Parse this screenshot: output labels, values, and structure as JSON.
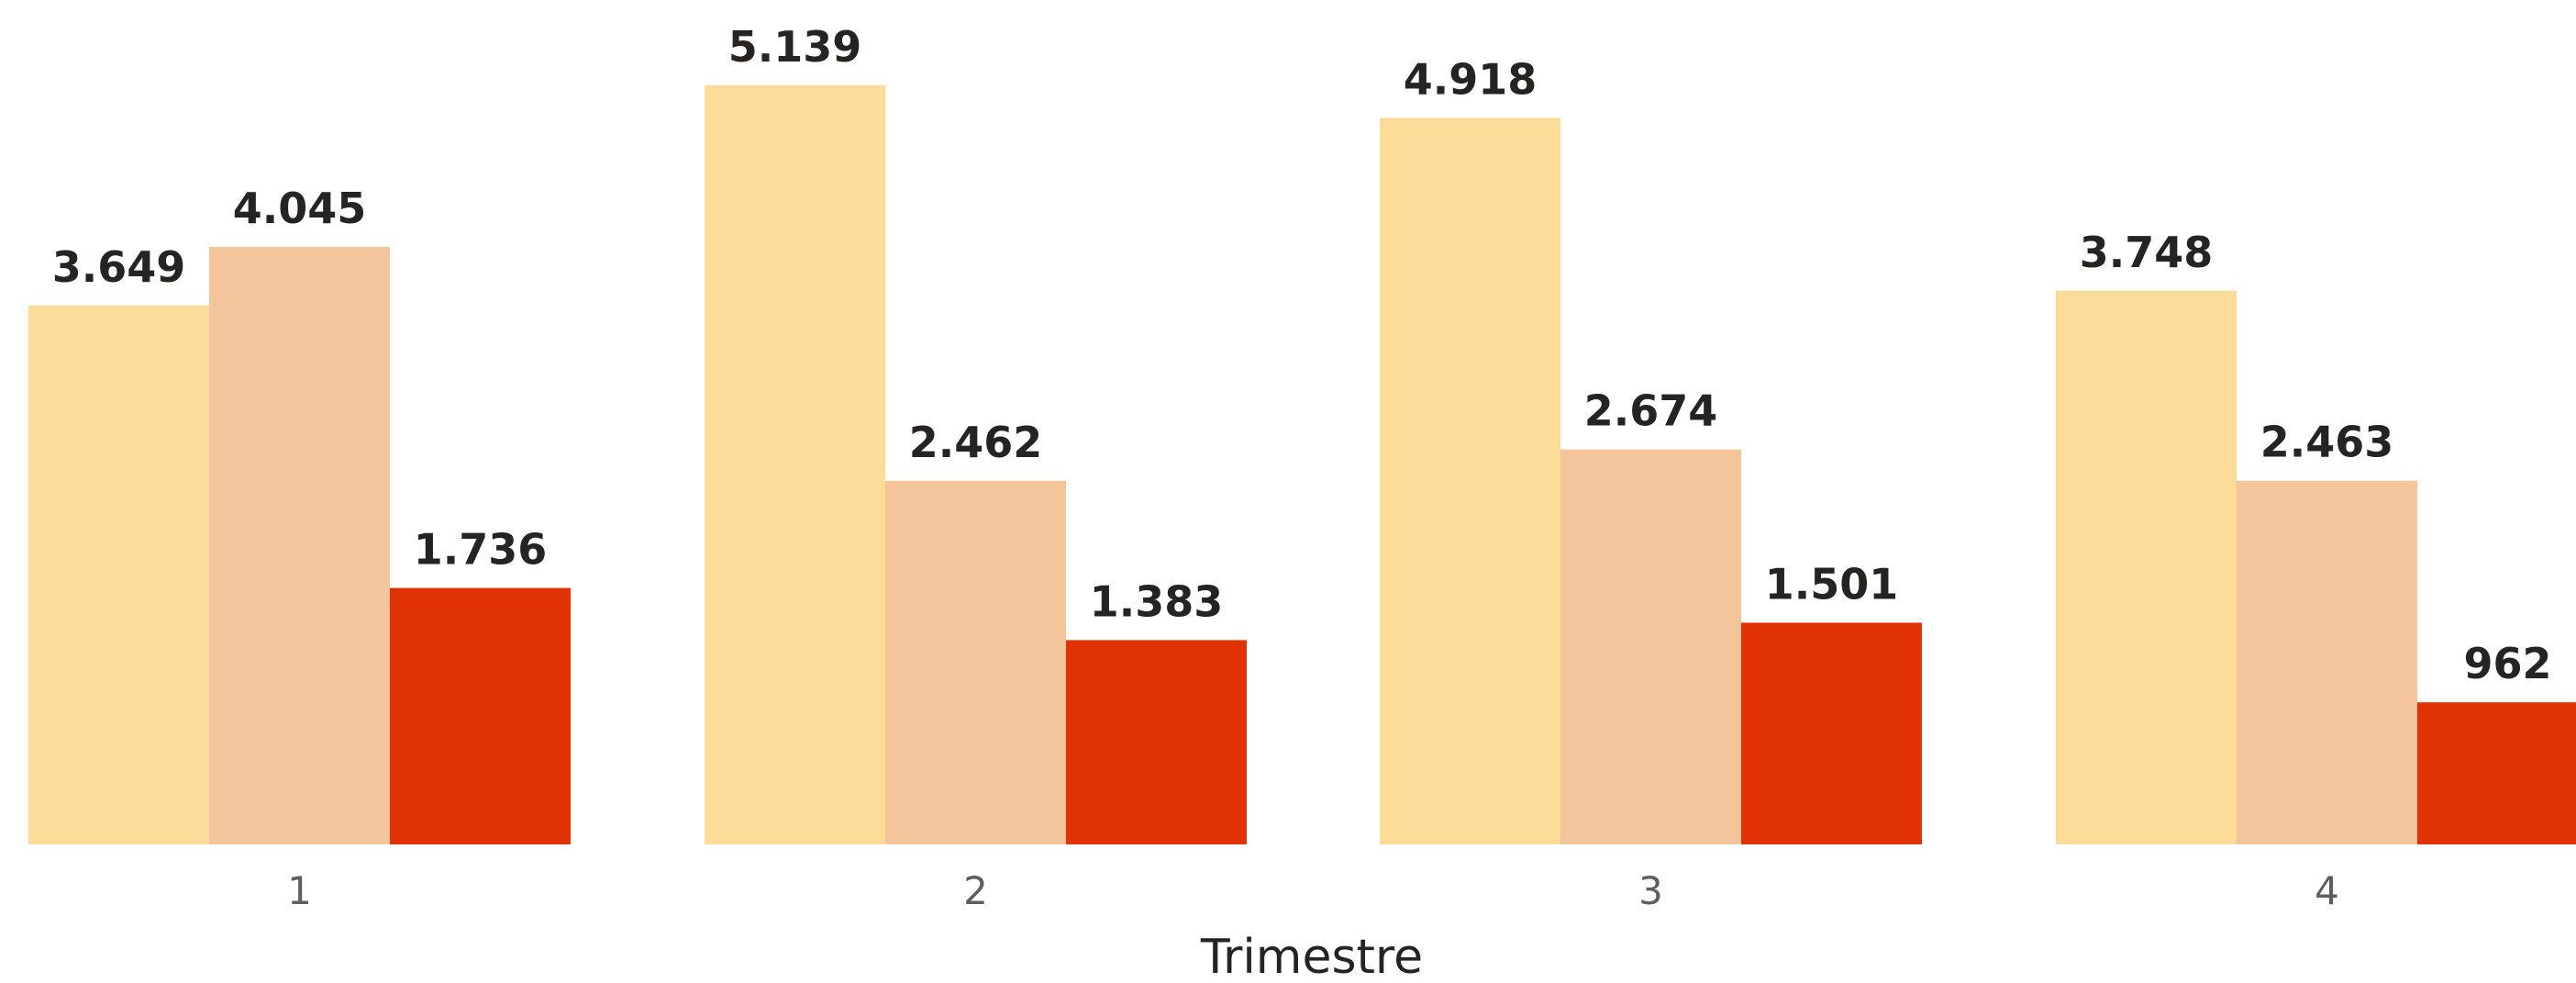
{
  "chart_data": {
    "type": "bar",
    "categories": [
      "1",
      "2",
      "3",
      "4"
    ],
    "series": [
      {
        "values": [
          3649,
          5139,
          4918,
          3748
        ],
        "color": "#fddb98",
        "labels": [
          "3.649",
          "5.139",
          "4.918",
          "3.748"
        ]
      },
      {
        "values": [
          4045,
          2462,
          2674,
          2463
        ],
        "color": "#f4c59b",
        "labels": [
          "4.045",
          "2.462",
          "2.674",
          "2.463"
        ]
      },
      {
        "values": [
          1736,
          1383,
          1501,
          962
        ],
        "color": "#e03202",
        "labels": [
          "1.736",
          "1.383",
          "1.501",
          "962"
        ]
      }
    ],
    "title": "",
    "xlabel": "Trimestre",
    "ylabel": "",
    "ylim": [
      0,
      5139
    ],
    "grid": false,
    "legend": "none"
  }
}
